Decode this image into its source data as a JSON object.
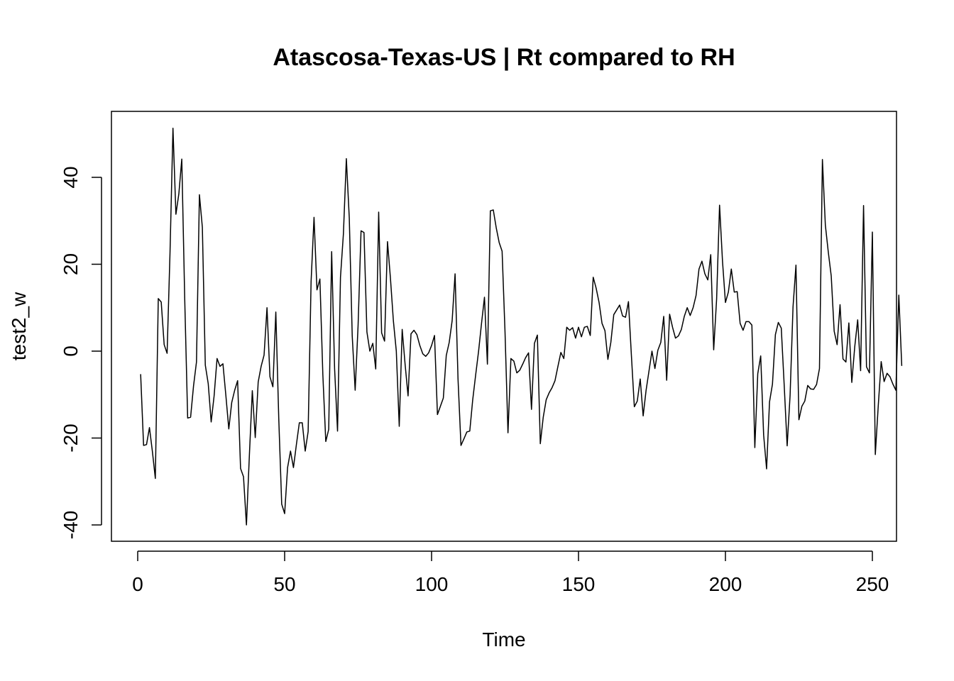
{
  "chart_data": {
    "type": "line",
    "title": "Atascosa-Texas-US | Rt compared to RH",
    "xlabel": "Time",
    "ylabel": "test2_w",
    "xlim": [
      0,
      250
    ],
    "ylim": [
      -40,
      50
    ],
    "x_ticks": [
      0,
      50,
      100,
      150,
      200,
      250
    ],
    "y_ticks": [
      -40,
      -20,
      0,
      20,
      40
    ],
    "x_tick_labels": [
      "0",
      "50",
      "100",
      "150",
      "200",
      "250"
    ],
    "y_tick_labels": [
      "-40",
      "-20",
      "0",
      "20",
      "40"
    ],
    "grid": false,
    "legend": "none",
    "line_color": "#000000",
    "x_start": 1,
    "x_step": 1,
    "values": [
      -5.3,
      -21.7,
      -21.5,
      -17.6,
      -23.1,
      -29.3,
      12.1,
      11.3,
      1.5,
      -0.5,
      22.8,
      51.3,
      31.5,
      36.2,
      44.2,
      12.0,
      -15.4,
      -15.2,
      -8.0,
      -2.5,
      36.0,
      28.5,
      -3.2,
      -7.5,
      -16.3,
      -10.3,
      -1.7,
      -3.5,
      -2.9,
      -10.2,
      -17.9,
      -11.8,
      -9.0,
      -6.8,
      -27.0,
      -28.9,
      -40.0,
      -24.0,
      -9.1,
      -19.9,
      -7.1,
      -3.5,
      -0.9,
      10.0,
      -5.9,
      -8.2,
      9.0,
      -15.5,
      -35.2,
      -37.4,
      -26.8,
      -23.0,
      -26.8,
      -21.5,
      -16.5,
      -16.5,
      -23.0,
      -18.5,
      16.0,
      30.8,
      14.1,
      16.6,
      -5.4,
      -20.8,
      -18.0,
      22.9,
      -4.0,
      -18.4,
      17.0,
      27.0,
      44.3,
      30.6,
      3.5,
      -9.0,
      6.0,
      27.7,
      27.3,
      4.4,
      0.0,
      1.8,
      -4.1,
      32.0,
      4.2,
      2.3,
      25.2,
      16.8,
      7.0,
      0.0,
      -17.3,
      5.0,
      -3.1,
      -10.3,
      4.0,
      4.8,
      3.8,
      1.3,
      -0.6,
      -1.2,
      -0.4,
      1.3,
      3.6,
      -14.6,
      -12.7,
      -10.8,
      -1.0,
      2.0,
      7.0,
      17.8,
      -6.4,
      -21.7,
      -20.2,
      -18.6,
      -18.4,
      -11.2,
      -5.5,
      0.0,
      6.4,
      12.4,
      -3.0,
      32.3,
      32.5,
      28.4,
      25.0,
      23.0,
      4.3,
      -18.8,
      -1.7,
      -2.3,
      -5.0,
      -4.4,
      -3.0,
      -1.5,
      -0.4,
      -13.4,
      1.8,
      3.7,
      -21.3,
      -15.2,
      -11.2,
      -9.6,
      -8.4,
      -6.8,
      -3.5,
      -0.3,
      -1.7,
      5.5,
      4.8,
      5.4,
      3.0,
      5.5,
      3.3,
      5.5,
      5.7,
      3.6,
      17.0,
      14.5,
      11.2,
      6.4,
      4.7,
      -1.9,
      2.0,
      8.4,
      9.5,
      10.6,
      8.1,
      7.8,
      11.4,
      -1.0,
      -12.8,
      -11.5,
      -6.4,
      -14.9,
      -9.0,
      -4.5,
      0.0,
      -4.0,
      0.2,
      2.0,
      8.0,
      -6.7,
      8.5,
      5.5,
      3.0,
      3.5,
      5.0,
      8.0,
      10.0,
      8.2,
      10.0,
      12.8,
      18.9,
      20.7,
      17.8,
      16.4,
      22.2,
      0.3,
      12.0,
      33.6,
      20.7,
      11.2,
      13.6,
      18.9,
      13.6,
      13.7,
      6.4,
      4.8,
      6.8,
      6.8,
      6.0,
      -22.2,
      -5.2,
      -1.1,
      -19.3,
      -27.1,
      -11.7,
      -7.6,
      3.8,
      6.6,
      5.3,
      -7.9,
      -21.8,
      -10.2,
      10.2,
      19.8,
      -15.8,
      -12.7,
      -11.5,
      -7.9,
      -8.7,
      -8.8,
      -7.7,
      -4.0,
      44.1,
      29.0,
      22.8,
      17.3,
      4.6,
      1.5,
      10.7,
      -1.8,
      -2.5,
      6.5,
      -7.2,
      1.0,
      7.2,
      -4.5,
      33.5,
      -3.6,
      -5.0,
      27.4,
      -23.8,
      -12.6,
      -2.4,
      -7.0,
      -5.1,
      -5.9,
      -7.6,
      -9.0,
      12.9,
      -3.4
    ]
  }
}
